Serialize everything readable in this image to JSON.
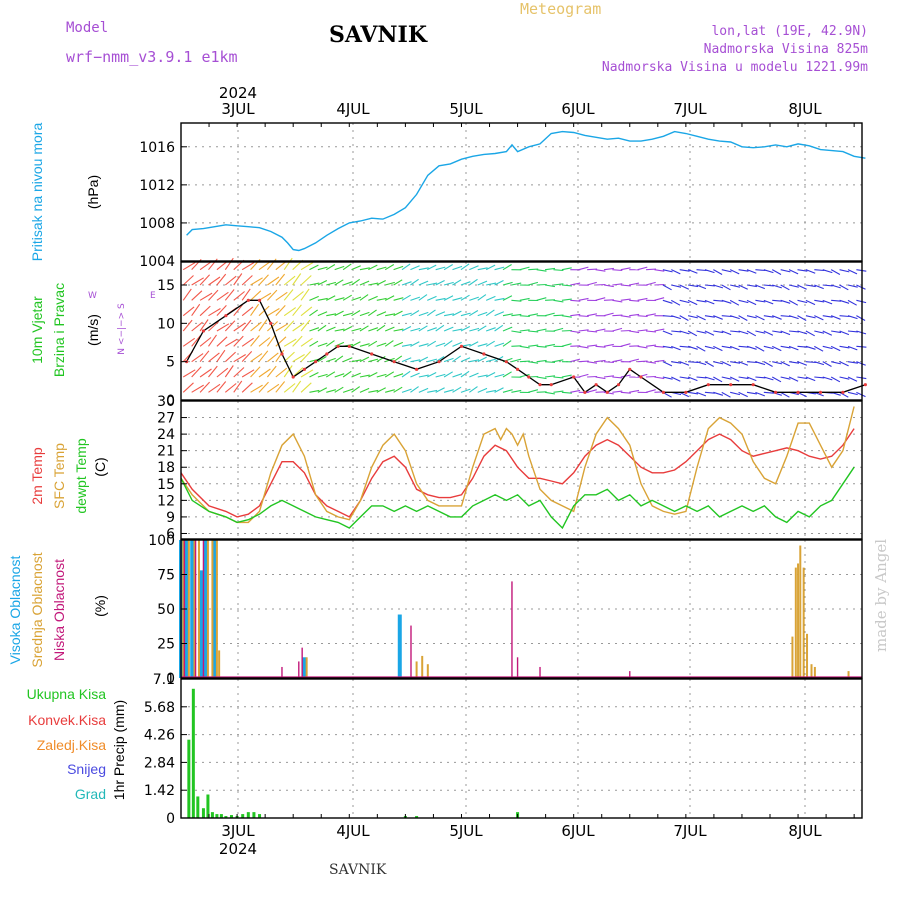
{
  "header": {
    "model_label": "Model",
    "model_name": "wrf−nmm_v3.9.1  e1km",
    "station": "SAVNIK",
    "meteogram_label": "Meteogram",
    "lonlat": "lon,lat (19E, 42.9N)",
    "altitude": "Nadmorska Visina 825m",
    "model_altitude": "Nadmorska Visina u modelu 1221.99m"
  },
  "footer": {
    "station": "SAVNIK",
    "watermark": "made by Angel"
  },
  "colors": {
    "pressure": "#1aa6e6",
    "temp2m": "#e83c3c",
    "sfc_temp": "#d9a336",
    "dewpoint": "#22c522",
    "high_cloud": "#1aa6e6",
    "mid_cloud": "#d9a336",
    "low_cloud": "#c2187a",
    "total_precip": "#22c522",
    "conv_precip": "#e83c3c",
    "frozen_precip": "#f08c28",
    "snow": "#4a4ae0",
    "graupel": "#22b8b8",
    "header_purple": "#a64fd4",
    "meteogram_gold": "#e6c36a"
  },
  "chart_data": [
    {
      "type": "line",
      "panel": "pressure",
      "ylabel": [
        "Pritisak na nivou mora",
        "(hPa)"
      ],
      "y_ticks": [
        1004,
        1008,
        1012,
        1016
      ],
      "ylim": [
        1004,
        1018.5
      ],
      "x_dates": [
        "3JUL",
        "4JUL",
        "5JUL",
        "6JUL",
        "7JUL",
        "8JUL"
      ],
      "year": "2024",
      "grid": true,
      "series": [
        {
          "x_days": [
            2.55,
            2.6,
            2.7,
            2.8,
            2.9,
            3.0,
            3.1,
            3.2,
            3.3,
            3.4,
            3.45,
            3.5,
            3.55,
            3.6,
            3.7,
            3.8,
            3.9,
            4.0,
            4.1,
            4.2,
            4.3,
            4.4,
            4.5,
            4.6,
            4.7,
            4.8,
            4.9,
            5.0,
            5.1,
            5.2,
            5.3,
            5.4,
            5.45,
            5.5,
            5.6,
            5.7,
            5.8,
            5.9,
            6.0,
            6.1,
            6.2,
            6.3,
            6.4,
            6.5,
            6.6,
            6.7,
            6.8,
            6.9,
            7.0,
            7.1,
            7.2,
            7.3,
            7.4,
            7.5,
            7.6,
            7.7,
            7.8,
            7.9,
            8.0,
            8.1,
            8.2,
            8.3,
            8.4,
            8.5,
            8.6
          ],
          "values": [
            1006.7,
            1007.3,
            1007.4,
            1007.6,
            1007.8,
            1007.7,
            1007.6,
            1007.5,
            1007.1,
            1006.5,
            1005.9,
            1005.2,
            1005.1,
            1005.3,
            1005.9,
            1006.7,
            1007.4,
            1008.0,
            1008.2,
            1008.5,
            1008.4,
            1008.9,
            1009.6,
            1011.0,
            1013.0,
            1014.0,
            1014.2,
            1014.7,
            1015.0,
            1015.2,
            1015.3,
            1015.5,
            1016.2,
            1015.5,
            1016.0,
            1016.3,
            1017.4,
            1017.6,
            1017.5,
            1017.2,
            1017.0,
            1016.8,
            1016.9,
            1016.6,
            1016.6,
            1016.8,
            1017.1,
            1017.6,
            1017.4,
            1017.1,
            1016.8,
            1016.6,
            1016.5,
            1016.0,
            1015.9,
            1016.0,
            1016.2,
            1016.0,
            1016.3,
            1016.1,
            1015.7,
            1015.6,
            1015.5,
            1015.0,
            1014.8
          ]
        }
      ]
    },
    {
      "type": "line",
      "panel": "wind",
      "ylabel": [
        "10m Vjetar",
        "Brzina i Pravac",
        "(m/s)"
      ],
      "compass": {
        "north": "N",
        "south": "S",
        "east": "E",
        "west": "W"
      },
      "y_ticks": [
        0,
        5,
        10,
        15
      ],
      "ylim": [
        0,
        18
      ],
      "grid": true,
      "series": [
        {
          "name": "speed",
          "x_days": [
            2.55,
            2.7,
            2.9,
            3.1,
            3.2,
            3.3,
            3.4,
            3.5,
            3.6,
            3.7,
            3.8,
            3.9,
            4.0,
            4.2,
            4.4,
            4.6,
            4.8,
            5.0,
            5.2,
            5.4,
            5.5,
            5.6,
            5.7,
            5.8,
            6.0,
            6.1,
            6.2,
            6.3,
            6.4,
            6.5,
            6.6,
            6.8,
            7.0,
            7.2,
            7.4,
            7.6,
            7.8,
            8.0,
            8.2,
            8.4,
            8.6
          ],
          "values": [
            5,
            9,
            11,
            13,
            13,
            10,
            6,
            3,
            4,
            5,
            6,
            7,
            7,
            6,
            5,
            4,
            5,
            7,
            6,
            5,
            4,
            3,
            2,
            2,
            3,
            1,
            2,
            1,
            2,
            4,
            3,
            1,
            1,
            2,
            2,
            2,
            1,
            1,
            1,
            1,
            2
          ]
        }
      ]
    },
    {
      "type": "line",
      "panel": "temperature",
      "ylabel": [
        "2m Temp",
        "SFC Temp",
        "dewpt Temp",
        "(C)"
      ],
      "y_ticks": [
        6,
        9,
        12,
        15,
        18,
        21,
        24,
        27,
        30
      ],
      "ylim": [
        5,
        30
      ],
      "grid": true,
      "series": [
        {
          "name": "2m Temp",
          "x_days": [
            2.5,
            2.6,
            2.75,
            2.9,
            3.0,
            3.1,
            3.2,
            3.3,
            3.4,
            3.5,
            3.6,
            3.7,
            3.8,
            3.9,
            4.0,
            4.1,
            4.2,
            4.3,
            4.4,
            4.5,
            4.6,
            4.7,
            4.8,
            4.9,
            5.0,
            5.1,
            5.2,
            5.3,
            5.4,
            5.5,
            5.6,
            5.7,
            5.8,
            5.9,
            6.0,
            6.1,
            6.2,
            6.3,
            6.4,
            6.5,
            6.6,
            6.7,
            6.8,
            6.9,
            7.0,
            7.1,
            7.2,
            7.3,
            7.4,
            7.5,
            7.6,
            7.7,
            7.8,
            7.9,
            8.0,
            8.1,
            8.2,
            8.3,
            8.4,
            8.5
          ],
          "values": [
            17,
            14,
            11,
            10,
            9,
            9.5,
            11,
            15,
            19,
            19,
            17,
            13,
            11,
            10,
            9,
            12,
            16,
            19,
            20,
            18,
            14,
            13,
            12.5,
            12.5,
            13,
            16,
            20,
            22,
            21,
            18,
            16,
            16,
            15.5,
            15,
            17,
            20,
            22,
            23,
            22,
            20,
            18,
            17,
            17,
            17.5,
            19,
            21,
            23,
            24,
            23,
            21,
            20,
            20.5,
            21,
            21.5,
            21,
            20,
            19.5,
            20,
            22,
            25
          ]
        },
        {
          "name": "SFC Temp",
          "x_days": [
            2.5,
            2.6,
            2.75,
            2.9,
            3.0,
            3.1,
            3.2,
            3.3,
            3.4,
            3.5,
            3.6,
            3.7,
            3.8,
            3.9,
            4.0,
            4.1,
            4.2,
            4.3,
            4.4,
            4.5,
            4.6,
            4.7,
            4.8,
            4.9,
            5.0,
            5.1,
            5.2,
            5.3,
            5.35,
            5.4,
            5.45,
            5.5,
            5.55,
            5.6,
            5.7,
            5.8,
            5.9,
            6.0,
            6.1,
            6.2,
            6.3,
            6.4,
            6.5,
            6.6,
            6.7,
            6.8,
            6.9,
            7.0,
            7.1,
            7.2,
            7.3,
            7.4,
            7.5,
            7.6,
            7.7,
            7.8,
            7.9,
            8.0,
            8.1,
            8.2,
            8.3,
            8.4,
            8.5
          ],
          "values": [
            16,
            13,
            10,
            9,
            8,
            8,
            10,
            17,
            22,
            24,
            20,
            13,
            10,
            9,
            8.5,
            12,
            18,
            22,
            24,
            21,
            15,
            12,
            11,
            11,
            11,
            18,
            24,
            25,
            23,
            25,
            24,
            22,
            24,
            20,
            14,
            12,
            11,
            10,
            18,
            24,
            27,
            25,
            22,
            15,
            11,
            10,
            9.5,
            10,
            18,
            25,
            27,
            26,
            24,
            19,
            16,
            15,
            20,
            26,
            26,
            22,
            18,
            21,
            29
          ]
        },
        {
          "name": "dewpt Temp",
          "x_days": [
            2.5,
            2.6,
            2.75,
            2.9,
            3.0,
            3.1,
            3.2,
            3.3,
            3.4,
            3.5,
            3.6,
            3.7,
            3.8,
            3.9,
            4.0,
            4.1,
            4.2,
            4.3,
            4.4,
            4.5,
            4.6,
            4.7,
            4.8,
            4.9,
            5.0,
            5.1,
            5.2,
            5.3,
            5.4,
            5.5,
            5.6,
            5.7,
            5.8,
            5.9,
            6.0,
            6.1,
            6.2,
            6.3,
            6.4,
            6.5,
            6.6,
            6.7,
            6.8,
            6.9,
            7.0,
            7.1,
            7.2,
            7.3,
            7.4,
            7.5,
            7.6,
            7.7,
            7.8,
            7.9,
            8.0,
            8.1,
            8.2,
            8.3,
            8.4,
            8.5
          ],
          "values": [
            16,
            12,
            10,
            9,
            8,
            8.5,
            9.5,
            11,
            12,
            11,
            10,
            9,
            8.5,
            8,
            7,
            9,
            11,
            11,
            10,
            11,
            10,
            11,
            10,
            9,
            9,
            11,
            12,
            13,
            12,
            13,
            11,
            12,
            9,
            7,
            11,
            13,
            13,
            14,
            12,
            13,
            11,
            12,
            11,
            10,
            11,
            10,
            11,
            9,
            10,
            11,
            10,
            11,
            9,
            8,
            10,
            9,
            11,
            12,
            15,
            18
          ]
        }
      ]
    },
    {
      "type": "bar",
      "panel": "clouds",
      "ylabel": [
        "Visoka Oblacnost",
        "Srednja Oblacnost",
        "Niska Oblacnost",
        "(%)"
      ],
      "y_ticks": [
        0,
        25,
        50,
        75,
        100
      ],
      "ylim": [
        0,
        100
      ],
      "grid": true,
      "series": [
        {
          "name": "Visoka Oblacnost",
          "x_days": [
            2.5,
            2.55,
            2.6,
            2.68,
            2.72,
            2.8,
            3.6,
            4.45
          ],
          "values": [
            100,
            100,
            100,
            78,
            100,
            100,
            15,
            46
          ]
        },
        {
          "name": "Srednja Oblacnost",
          "x_days": [
            2.52,
            2.57,
            2.62,
            2.66,
            2.74,
            2.78,
            2.82,
            2.84,
            3.62,
            4.6,
            4.65,
            4.7,
            7.95,
            7.98,
            8.0,
            8.02,
            8.05,
            8.08,
            8.12,
            8.15,
            8.45
          ],
          "values": [
            100,
            100,
            100,
            100,
            100,
            100,
            100,
            20,
            15,
            12,
            16,
            10,
            30,
            80,
            83,
            96,
            80,
            32,
            10,
            8,
            5
          ]
        },
        {
          "name": "Niska Oblacnost",
          "x_days": [
            2.53,
            2.63,
            2.7,
            3.4,
            3.55,
            3.58,
            4.55,
            5.45,
            5.5,
            5.7,
            6.5
          ],
          "values": [
            100,
            100,
            100,
            8,
            12,
            22,
            38,
            70,
            15,
            8,
            5
          ]
        }
      ]
    },
    {
      "type": "bar",
      "panel": "precip",
      "ylabel": [
        "1hr Precip (mm)"
      ],
      "legend": [
        "Ukupna Kisa",
        "Konvek.Kisa",
        "Zaledj.Kisa",
        "Snijeg",
        "Grad"
      ],
      "y_ticks": [
        0,
        1.42,
        2.84,
        4.26,
        5.68,
        7.1
      ],
      "ylim": [
        0,
        7.1
      ],
      "grid": true,
      "series": [
        {
          "name": "Ukupna Kisa",
          "x_days": [
            2.57,
            2.61,
            2.65,
            2.7,
            2.74,
            2.78,
            2.82,
            2.86,
            2.9,
            2.95,
            3.0,
            3.05,
            3.1,
            3.15,
            3.2,
            4.5,
            4.6,
            5.5
          ],
          "values": [
            4.0,
            6.6,
            1.1,
            0.5,
            1.2,
            0.3,
            0.2,
            0.2,
            0.1,
            0.15,
            0.1,
            0.2,
            0.3,
            0.3,
            0.2,
            0.1,
            0.1,
            0.3
          ]
        }
      ]
    }
  ]
}
